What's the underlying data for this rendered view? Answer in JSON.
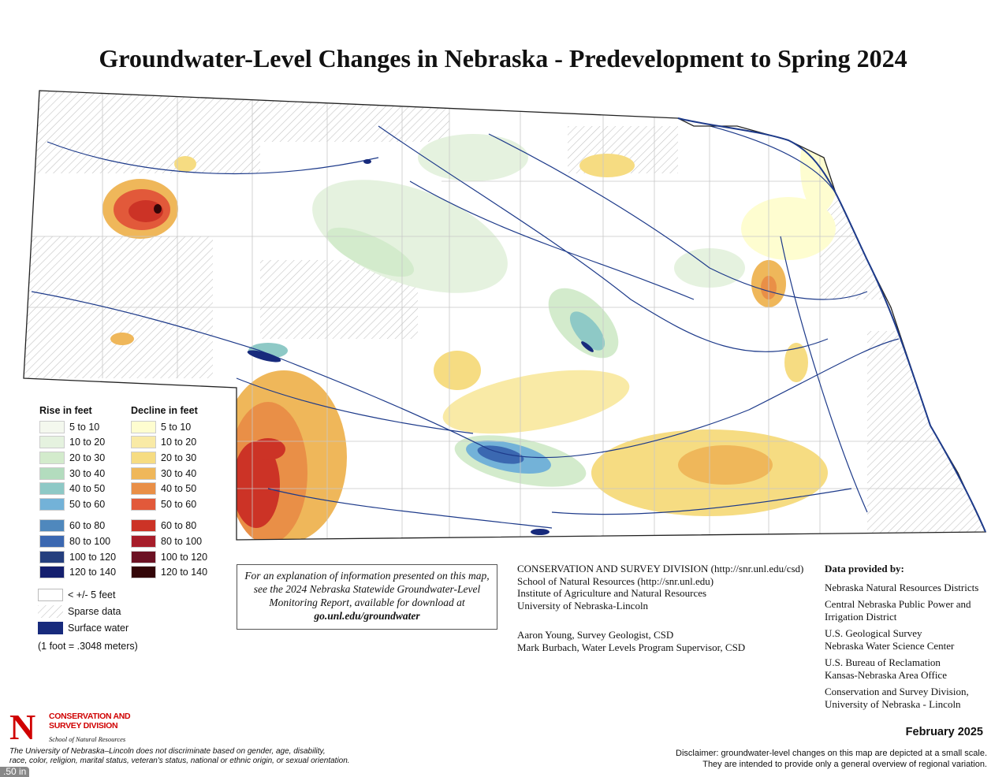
{
  "title": "Groundwater-Level Changes in Nebraska - Predevelopment to Spring 2024",
  "legend": {
    "rise_heading": "Rise in feet",
    "decline_heading": "Decline in feet",
    "rise": [
      {
        "label": "5 to 10",
        "color": "#f4f8ee"
      },
      {
        "label": "10 to 20",
        "color": "#e5f2df"
      },
      {
        "label": "20 to 30",
        "color": "#d3ebcc"
      },
      {
        "label": "30 to 40",
        "color": "#b3dcbe"
      },
      {
        "label": "40 to 50",
        "color": "#8ec9c6"
      },
      {
        "label": "50 to 60",
        "color": "#73b2d8"
      },
      {
        "label": "60 to 80",
        "color": "#4f88bd"
      },
      {
        "label": "80 to 100",
        "color": "#3b68b1"
      },
      {
        "label": "100 to 120",
        "color": "#253f7e"
      },
      {
        "label": "120 to 140",
        "color": "#141f6e"
      }
    ],
    "decline": [
      {
        "label": "5 to 10",
        "color": "#fefdd0"
      },
      {
        "label": "10 to 20",
        "color": "#f9eaa6"
      },
      {
        "label": "20 to 30",
        "color": "#f6dc82"
      },
      {
        "label": "30 to 40",
        "color": "#efb75a"
      },
      {
        "label": "40 to 50",
        "color": "#e98f47"
      },
      {
        "label": "50 to 60",
        "color": "#e2593a"
      },
      {
        "label": "60 to 80",
        "color": "#cc3326"
      },
      {
        "label": "80 to 100",
        "color": "#a71d2a"
      },
      {
        "label": "100 to 120",
        "color": "#6c1123"
      },
      {
        "label": "120 to 140",
        "color": "#330608"
      }
    ],
    "other": [
      {
        "label": "< +/- 5 feet",
        "type": "none"
      },
      {
        "label": "Sparse data",
        "type": "hatch"
      },
      {
        "label": "Surface water",
        "type": "water",
        "color": "#172a7c"
      }
    ],
    "conversion": "(1 foot = .3048 meters)"
  },
  "note": {
    "text": "For an explanation of information presented on this map, see the 2024 Nebraska Statewide Groundwater-Level Monitoring Report, available for download at",
    "link": "go.unl.edu/groundwater"
  },
  "credits": {
    "lines": [
      "CONSERVATION AND SURVEY DIVISION (http://snr.unl.edu/csd)",
      "School of Natural Resources (http://snr.unl.edu)",
      "Institute of Agriculture and Natural Resources",
      "University of Nebraska-Lincoln"
    ],
    "authors": [
      "Aaron Young, Survey Geologist, CSD",
      "Mark Burbach, Water Levels Program Supervisor, CSD"
    ]
  },
  "providers": {
    "heading": "Data provided by:",
    "items": [
      [
        "Nebraska Natural Resources Districts"
      ],
      [
        "Central Nebraska Public Power and",
        "Irrigation District"
      ],
      [
        "U.S. Geological Survey",
        "Nebraska Water Science Center"
      ],
      [
        "U.S. Bureau of Reclamation",
        "Kansas-Nebraska Area Office"
      ],
      [
        "Conservation and Survey Division,",
        "University of Nebraska - Lincoln"
      ]
    ]
  },
  "date": "February 2025",
  "disclaimer": [
    "Disclaimer: groundwater-level changes on this map are depicted at a small scale.",
    "They are intended to provide only a general overview of regional variation."
  ],
  "logo": {
    "letter": "N",
    "name": "CONSERVATION AND SURVEY DIVISION",
    "school": "School of Natural Resources"
  },
  "nondiscrimination": [
    "The University of Nebraska–Lincoln does not discriminate based on gender, age, disability,",
    "race, color, religion, marital status, veteran's status, national or ethnic origin, or sexual orientation."
  ],
  "scale_tag": ".50 in"
}
